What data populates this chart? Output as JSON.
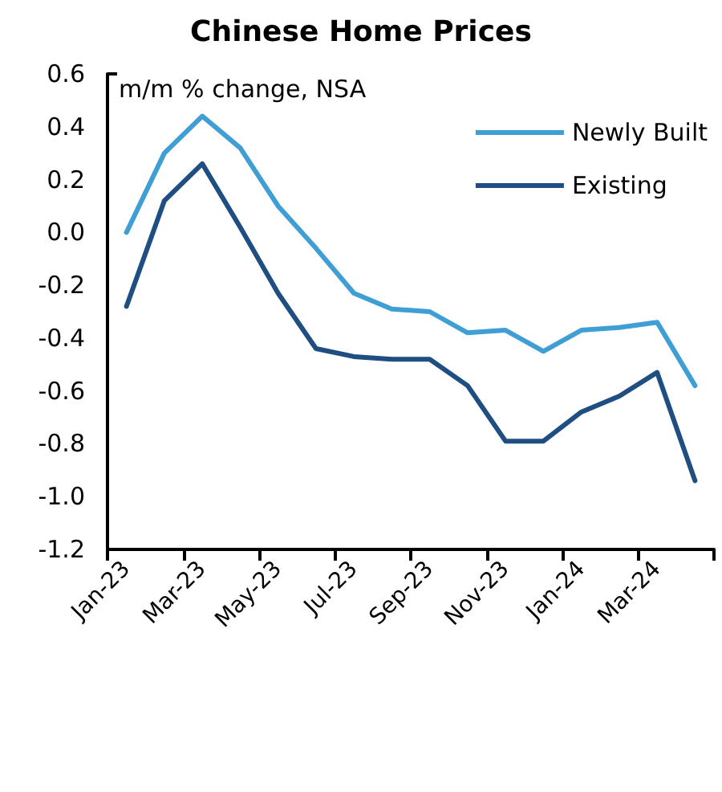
{
  "chart_data": {
    "type": "line",
    "title": "Chinese Home Prices",
    "ylabel": "m/m % change, NSA",
    "categories": [
      "Jan-23",
      null,
      "Mar-23",
      null,
      "May-23",
      null,
      "Jul-23",
      null,
      "Sep-23",
      null,
      "Nov-23",
      null,
      "Jan-24",
      null,
      "Mar-24",
      null
    ],
    "series": [
      {
        "name": "Newly Built",
        "color": "#3f9fd5",
        "values": [
          0.0,
          0.3,
          0.44,
          0.32,
          0.1,
          -0.06,
          -0.23,
          -0.29,
          -0.3,
          -0.38,
          -0.37,
          -0.45,
          -0.37,
          -0.36,
          -0.34,
          -0.58
        ]
      },
      {
        "name": "Existing",
        "color": "#1f4e82",
        "values": [
          -0.28,
          0.12,
          0.26,
          0.02,
          -0.23,
          -0.44,
          -0.47,
          -0.48,
          -0.48,
          -0.58,
          -0.79,
          -0.79,
          -0.68,
          -0.62,
          -0.53,
          -0.94
        ]
      }
    ],
    "ylim": [
      -1.2,
      0.6
    ],
    "yticks": [
      -1.2,
      {
        "value": -1,
        "label": "-1.0"
      },
      -0.8,
      -0.6,
      -0.4,
      -0.2,
      {
        "value": 0,
        "label": "0.0"
      },
      0.2,
      0.4,
      0.6
    ],
    "grid": false,
    "legend": "top right",
    "marker": "none",
    "line_style": "solid"
  }
}
